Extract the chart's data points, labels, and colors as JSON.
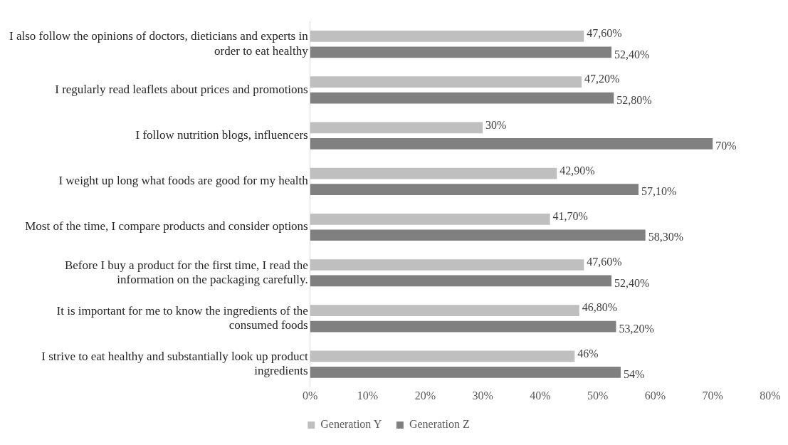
{
  "chart_data": {
    "type": "bar",
    "orientation": "horizontal",
    "categories": [
      "I also follow the opinions of doctors, dieticians and experts in order to eat healthy",
      "I regularly read leaflets about prices and promotions",
      "I follow nutrition blogs, influencers",
      "I weight up long what foods are good for my health",
      "Most of the time, I compare products and consider options",
      "Before I buy a product for the first time, I read the information on the packaging carefully.",
      "It is important for me to know the ingredients of the consumed foods",
      "I strive to eat healthy and substantially look up product ingredients"
    ],
    "series": [
      {
        "name": "Generation Y",
        "color": "#bfbfbf",
        "values": [
          47.6,
          47.2,
          30,
          42.9,
          41.7,
          47.6,
          46.8,
          46
        ],
        "value_labels": [
          "47,60%",
          "47,20%",
          "30%",
          "42,90%",
          "41,70%",
          "47,60%",
          "46,80%",
          "46%"
        ]
      },
      {
        "name": "Generation Z",
        "color": "#808080",
        "values": [
          52.4,
          52.8,
          70,
          57.1,
          58.3,
          52.4,
          53.2,
          54
        ],
        "value_labels": [
          "52,40%",
          "52,80%",
          "70%",
          "57,10%",
          "58,30%",
          "52,40%",
          "53,20%",
          "54%"
        ]
      }
    ],
    "xlim": [
      0,
      80
    ],
    "xticks": [
      {
        "value": 0,
        "label": "0%"
      },
      {
        "value": 10,
        "label": "10%"
      },
      {
        "value": 20,
        "label": "20%"
      },
      {
        "value": 30,
        "label": "30%"
      },
      {
        "value": 40,
        "label": "40%"
      },
      {
        "value": 50,
        "label": "50%"
      },
      {
        "value": 60,
        "label": "60%"
      },
      {
        "value": 70,
        "label": "70%"
      },
      {
        "value": 80,
        "label": "80%"
      }
    ],
    "grid": false,
    "legend": "bottom"
  }
}
